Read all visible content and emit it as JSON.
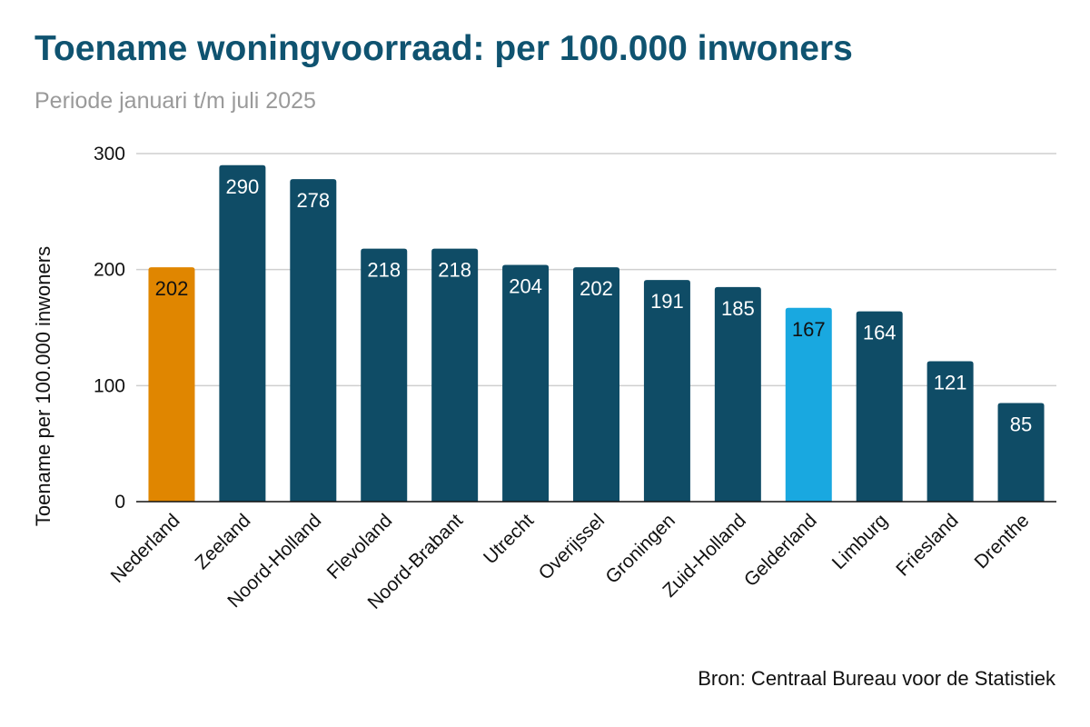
{
  "header": {
    "title": "Toename woningvoorraad: per 100.000 inwoners",
    "subtitle": "Periode januari t/m juli 2025"
  },
  "footer": {
    "source": "Bron: Centraal Bureau voor de Statistiek"
  },
  "colors": {
    "title": "#0f5370",
    "default_bar": "#0f4c66",
    "nederland_bar": "#e08600",
    "gelderland_bar": "#19a8e0",
    "gridline": "#cfcfcf",
    "axis": "#111111",
    "value_label_light": "#ffffff",
    "value_label_dark": "#111111"
  },
  "chart_data": {
    "type": "bar",
    "title": "Toename woningvoorraad: per 100.000 inwoners",
    "subtitle": "Periode januari t/m juli 2025",
    "xlabel": "",
    "ylabel": "Toename per 100.000 inwoners",
    "ylim": [
      0,
      300
    ],
    "yticks": [
      0,
      100,
      200,
      300
    ],
    "grid": true,
    "legend": "none",
    "categories": [
      "Nederland",
      "Zeeland",
      "Noord-Holland",
      "Flevoland",
      "Noord-Brabant",
      "Utrecht",
      "Overijssel",
      "Groningen",
      "Zuid-Holland",
      "Gelderland",
      "Limburg",
      "Friesland",
      "Drenthe"
    ],
    "values": [
      202,
      290,
      278,
      218,
      218,
      204,
      202,
      191,
      185,
      167,
      164,
      121,
      85
    ],
    "bar_colors": [
      "#e08600",
      "#0f4c66",
      "#0f4c66",
      "#0f4c66",
      "#0f4c66",
      "#0f4c66",
      "#0f4c66",
      "#0f4c66",
      "#0f4c66",
      "#19a8e0",
      "#0f4c66",
      "#0f4c66",
      "#0f4c66"
    ],
    "label_colors": [
      "#111111",
      "#ffffff",
      "#ffffff",
      "#ffffff",
      "#ffffff",
      "#ffffff",
      "#ffffff",
      "#ffffff",
      "#ffffff",
      "#111111",
      "#ffffff",
      "#ffffff",
      "#ffffff"
    ],
    "data_labels": [
      "202",
      "290",
      "278",
      "218",
      "218",
      "204",
      "202",
      "191",
      "185",
      "167",
      "164",
      "121",
      "85"
    ]
  }
}
